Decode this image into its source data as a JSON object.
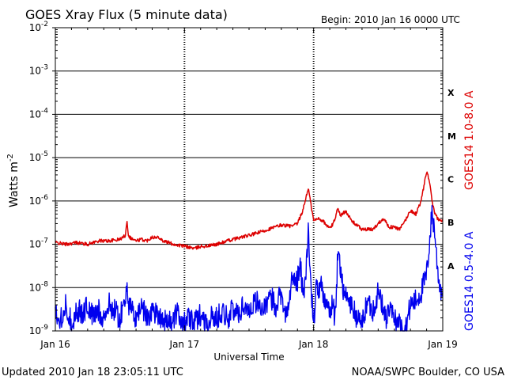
{
  "header": {
    "title": "GOES Xray Flux (5 minute data)",
    "begin_label": "Begin:  2010 Jan 16 0000 UTC"
  },
  "footer": {
    "updated": "Updated 2010 Jan 18 23:05:11 UTC",
    "credit": "NOAA/SWPC Boulder, CO USA"
  },
  "colors": {
    "long_channel": "#dd0000",
    "short_channel": "#0000ee",
    "axis": "#000000",
    "background": "#ffffff"
  },
  "chart_data": {
    "type": "line",
    "title": "GOES Xray Flux (5 minute data)",
    "xlabel": "Universal Time",
    "ylabel": "Watts m^-2",
    "ylabel_base": "Watts m",
    "ylabel_exp": "-2",
    "yscale": "log",
    "ylim": [
      1e-09,
      0.01
    ],
    "xlim": [
      "2010-01-16 00:00",
      "2010-01-19 00:00"
    ],
    "x_tick_labels": [
      "Jan 16",
      "Jan 17",
      "Jan 18",
      "Jan 19"
    ],
    "y_ticks": [
      {
        "value": 0.01,
        "base": "10",
        "exp": "-2"
      },
      {
        "value": 0.001,
        "base": "10",
        "exp": "-3"
      },
      {
        "value": 0.0001,
        "base": "10",
        "exp": "-4"
      },
      {
        "value": 1e-05,
        "base": "10",
        "exp": "-5"
      },
      {
        "value": 1e-06,
        "base": "10",
        "exp": "-6"
      },
      {
        "value": 1e-07,
        "base": "10",
        "exp": "-7"
      },
      {
        "value": 1e-08,
        "base": "10",
        "exp": "-8"
      },
      {
        "value": 1e-09,
        "base": "10",
        "exp": "-9"
      }
    ],
    "flare_classes": [
      {
        "label": "X",
        "low": 0.0001,
        "high": 0.001
      },
      {
        "label": "M",
        "low": 1e-05,
        "high": 0.0001
      },
      {
        "label": "C",
        "low": 1e-06,
        "high": 1e-05
      },
      {
        "label": "B",
        "low": 1e-07,
        "high": 1e-06
      },
      {
        "label": "A",
        "low": 1e-08,
        "high": 1e-07
      }
    ],
    "grid": "horizontal lines at each decade, dotted vertical lines at each day",
    "series": [
      {
        "name": "GOES14 1.0-8.0 A",
        "color": "#dd0000",
        "x_hours": [
          0,
          2,
          4,
          6,
          8,
          10,
          12,
          13,
          13.3,
          13.6,
          14,
          15,
          16,
          17,
          18,
          18.8,
          19.2,
          20,
          21,
          22,
          23,
          24,
          25,
          26,
          27,
          28,
          30,
          32,
          34,
          36,
          38,
          40,
          42,
          44,
          45,
          46,
          47,
          48,
          49,
          50,
          50.5,
          51,
          51.5,
          52,
          52.5,
          53,
          54,
          55,
          56,
          57,
          58,
          59,
          60,
          61,
          62,
          63,
          64,
          65,
          66,
          67,
          68,
          69,
          69.5,
          70,
          70.5,
          71,
          71.5,
          72
        ],
        "values": [
          1.1e-07,
          1e-07,
          1.1e-07,
          1e-07,
          1.2e-07,
          1.2e-07,
          1.3e-07,
          1.6e-07,
          3.5e-07,
          1.6e-07,
          1.4e-07,
          1.2e-07,
          1.3e-07,
          1.2e-07,
          1.5e-07,
          1.4e-07,
          1.5e-07,
          1.2e-07,
          1.1e-07,
          1e-07,
          9.5e-08,
          9e-08,
          8.5e-08,
          8e-08,
          9e-08,
          9e-08,
          1e-07,
          1.2e-07,
          1.4e-07,
          1.6e-07,
          1.9e-07,
          2.3e-07,
          2.8e-07,
          2.6e-07,
          3e-07,
          6e-07,
          2e-06,
          3.5e-07,
          4e-07,
          3.2e-07,
          2.6e-07,
          2.4e-07,
          2.8e-07,
          4e-07,
          7e-07,
          4.5e-07,
          6e-07,
          3.5e-07,
          2.8e-07,
          2.2e-07,
          2.2e-07,
          2.2e-07,
          3e-07,
          4e-07,
          2.5e-07,
          2.5e-07,
          2.2e-07,
          3.5e-07,
          6e-07,
          5e-07,
          1e-06,
          4.8e-06,
          3e-06,
          1e-06,
          5e-07,
          4e-07,
          3.5e-07,
          3.5e-07
        ]
      },
      {
        "name": "GOES14 0.5-4.0 A",
        "color": "#0000ee",
        "x_hours": [
          0,
          1,
          2,
          3,
          4,
          5,
          6,
          7,
          8,
          9,
          10,
          11,
          12,
          13,
          13.3,
          13.6,
          14,
          15,
          16,
          17,
          18,
          19,
          20,
          21,
          22,
          23,
          24,
          25,
          26,
          27,
          28,
          29,
          30,
          31,
          32,
          33,
          34,
          35,
          36,
          37,
          38,
          39,
          40,
          41,
          42,
          43,
          44,
          45,
          45.5,
          46,
          46.5,
          47,
          47.5,
          48,
          48.5,
          49,
          49.5,
          50,
          50.5,
          51,
          51.5,
          52,
          52.5,
          53,
          53.5,
          54,
          55,
          56,
          57,
          58,
          59,
          60,
          61,
          61.5,
          62,
          63,
          64,
          65,
          66,
          67,
          68,
          69,
          69.5,
          70,
          70.5,
          71,
          71.5,
          72
        ],
        "values": [
          3e-09,
          2e-09,
          4e-09,
          1.5e-09,
          3e-09,
          2.5e-09,
          4e-09,
          2e-09,
          3e-09,
          2e-09,
          4e-09,
          3e-09,
          2e-09,
          5e-09,
          1.8e-08,
          4e-09,
          3e-09,
          2e-09,
          4e-09,
          2e-09,
          3e-09,
          2.5e-09,
          2e-09,
          1.5e-09,
          2e-09,
          2.5e-09,
          1.5e-09,
          2e-09,
          1.5e-09,
          2.5e-09,
          1.5e-09,
          2e-09,
          2e-09,
          3e-09,
          2e-09,
          3e-09,
          2.5e-09,
          4e-09,
          3e-09,
          5e-09,
          4e-09,
          3e-09,
          6e-09,
          4e-09,
          8e-09,
          2e-09,
          1.5e-08,
          1.5e-08,
          3e-08,
          1e-08,
          1.2e-08,
          2.2e-07,
          1e-08,
          1.5e-09,
          1e-08,
          8e-09,
          1e-08,
          5e-09,
          6e-09,
          2.5e-09,
          4e-09,
          2e-09,
          5.5e-08,
          3e-08,
          1e-08,
          6e-09,
          4e-09,
          2e-09,
          1.5e-09,
          5e-09,
          3e-09,
          8e-09,
          3e-09,
          2e-09,
          3e-09,
          2e-09,
          1.5e-09,
          1e-09,
          4e-09,
          5e-09,
          8e-09,
          2e-08,
          1e-07,
          5.5e-07,
          2e-07,
          3e-08,
          1e-08,
          8e-09
        ]
      }
    ]
  }
}
